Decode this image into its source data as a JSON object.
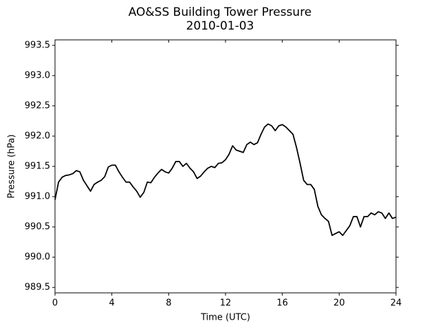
{
  "chart_data": {
    "type": "line",
    "title": "AO&SS Building Tower Pressure",
    "subtitle": "2010-01-03",
    "xlabel": "Time (UTC)",
    "ylabel": "Pressure (hPa)",
    "xlim": [
      0,
      24
    ],
    "xticks": [
      0,
      4,
      8,
      12,
      16,
      20,
      24
    ],
    "ylim": [
      989.41,
      993.59
    ],
    "yticks": [
      989.5,
      {
        "value": 990,
        "label": "990.0"
      },
      990.5,
      {
        "value": 991,
        "label": "991.0"
      },
      991.5,
      {
        "value": 992,
        "label": "992.0"
      },
      992.5,
      {
        "value": 993,
        "label": "993.0"
      },
      993.5
    ],
    "grid": false,
    "x": [
      0,
      0.25,
      0.5,
      0.75,
      1,
      1.25,
      1.5,
      1.75,
      2,
      2.25,
      2.5,
      2.75,
      3,
      3.25,
      3.5,
      3.75,
      4,
      4.25,
      4.5,
      4.75,
      5,
      5.25,
      5.5,
      5.75,
      6,
      6.25,
      6.5,
      6.75,
      7,
      7.25,
      7.5,
      7.75,
      8,
      8.25,
      8.5,
      8.75,
      9,
      9.25,
      9.5,
      9.75,
      10,
      10.25,
      10.5,
      10.75,
      11,
      11.25,
      11.5,
      11.75,
      12,
      12.25,
      12.5,
      12.75,
      13,
      13.25,
      13.5,
      13.75,
      14,
      14.25,
      14.5,
      14.75,
      15,
      15.25,
      15.5,
      15.75,
      16,
      16.25,
      16.5,
      16.75,
      17,
      17.25,
      17.5,
      17.75,
      18,
      18.25,
      18.5,
      18.75,
      19,
      19.25,
      19.5,
      19.75,
      20,
      20.25,
      20.5,
      20.75,
      21,
      21.25,
      21.5,
      21.75,
      22,
      22.25,
      22.5,
      22.75,
      23,
      23.25,
      23.5,
      23.75,
      24
    ],
    "series": [
      {
        "color": "#000000",
        "values": [
          990.95,
          991.24,
          991.32,
          991.35,
          991.36,
          991.38,
          991.43,
          991.41,
          991.27,
          991.18,
          991.09,
          991.2,
          991.24,
          991.27,
          991.33,
          991.49,
          991.52,
          991.52,
          991.41,
          991.32,
          991.24,
          991.24,
          991.16,
          991.09,
          990.99,
          991.07,
          991.24,
          991.23,
          991.32,
          991.39,
          991.45,
          991.41,
          991.39,
          991.47,
          991.58,
          991.58,
          991.5,
          991.55,
          991.47,
          991.41,
          991.3,
          991.34,
          991.41,
          991.47,
          991.5,
          991.48,
          991.55,
          991.56,
          991.61,
          991.7,
          991.84,
          991.77,
          991.75,
          991.73,
          991.86,
          991.9,
          991.86,
          991.89,
          992.03,
          992.15,
          992.2,
          992.17,
          992.09,
          992.17,
          992.19,
          992.15,
          992.09,
          992.03,
          991.81,
          991.55,
          991.27,
          991.2,
          991.2,
          991.12,
          990.84,
          990.7,
          990.64,
          990.59,
          990.36,
          990.39,
          990.42,
          990.36,
          990.44,
          990.52,
          990.67,
          990.67,
          990.5,
          990.67,
          990.67,
          990.73,
          990.7,
          990.75,
          990.73,
          990.64,
          990.73,
          990.64,
          990.66
        ]
      }
    ]
  }
}
